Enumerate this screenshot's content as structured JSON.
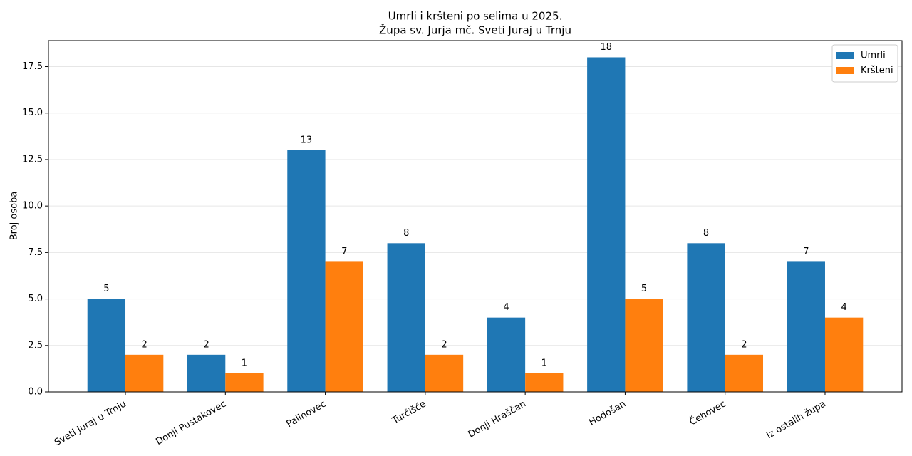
{
  "chart_data": {
    "type": "bar",
    "title": "Umrli i kršteni po selima u 2025.",
    "subtitle": "Župa sv. Jurja mč. Sveti Juraj u Trnju",
    "y_label": "Broj osoba",
    "categories": [
      "Sveti Juraj u Trnju",
      "Donji Pustakovec",
      "Palinovec",
      "Turčišće",
      "Donji Hraščan",
      "Hodošan",
      "Čehovec",
      "Iz ostalih župa"
    ],
    "series": [
      {
        "name": "Umrli",
        "color": "#1f77b4",
        "values": [
          5,
          2,
          13,
          8,
          4,
          18,
          8,
          7
        ]
      },
      {
        "name": "Kršteni",
        "color": "#ff7f0e",
        "values": [
          2,
          1,
          7,
          2,
          1,
          5,
          2,
          4
        ]
      }
    ],
    "ylim": [
      0,
      18.9
    ],
    "yticks": [
      {
        "value": 0,
        "label": "0.0"
      },
      {
        "value": 2.5,
        "label": "2.5"
      },
      {
        "value": 5,
        "label": "5.0"
      },
      {
        "value": 7.5,
        "label": "7.5"
      },
      {
        "value": 10,
        "label": "10.0"
      },
      {
        "value": 12.5,
        "label": "12.5"
      },
      {
        "value": 15,
        "label": "15.0"
      },
      {
        "value": 17.5,
        "label": "17.5"
      }
    ],
    "grid": true,
    "legend": "upper right"
  }
}
